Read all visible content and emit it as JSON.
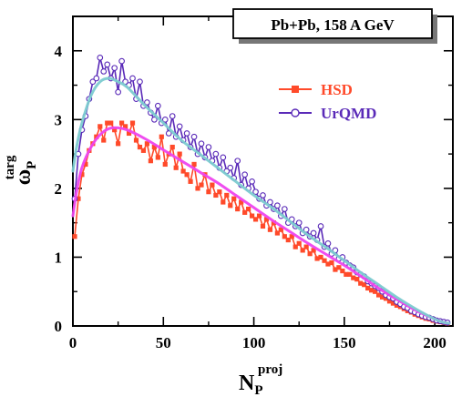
{
  "chart_data": {
    "type": "line",
    "title": "Pb+Pb, 158 A GeV",
    "xlabel": {
      "main": "N",
      "sub": "P",
      "sup": "proj"
    },
    "ylabel": {
      "main": "ω",
      "sub": "P",
      "sup": "targ"
    },
    "xlim": [
      0,
      210
    ],
    "ylim": [
      0,
      4.5
    ],
    "xticks": [
      0,
      50,
      100,
      150,
      200
    ],
    "yticks": [
      0,
      1,
      2,
      3,
      4
    ],
    "grid": false,
    "legend_position": "upper-right",
    "series": [
      {
        "name": "HSD",
        "color": "#ff4a2a",
        "fit_color": "#ee44ee",
        "marker": "square",
        "x": [
          1,
          3,
          5,
          7,
          9,
          11,
          13,
          15,
          17,
          19,
          21,
          23,
          25,
          27,
          29,
          31,
          33,
          35,
          37,
          39,
          41,
          43,
          45,
          47,
          49,
          51,
          53,
          55,
          57,
          59,
          61,
          63,
          65,
          67,
          69,
          71,
          73,
          75,
          77,
          79,
          81,
          83,
          85,
          87,
          89,
          91,
          93,
          95,
          97,
          99,
          101,
          103,
          105,
          107,
          109,
          111,
          113,
          115,
          117,
          119,
          121,
          123,
          125,
          127,
          129,
          131,
          133,
          135,
          137,
          139,
          141,
          143,
          145,
          147,
          149,
          151,
          153,
          155,
          157,
          159,
          161,
          163,
          165,
          167,
          169,
          171,
          173,
          175,
          177,
          179,
          181,
          183,
          185,
          187,
          189,
          191,
          193,
          195,
          197,
          199,
          201,
          203,
          205,
          207
        ],
        "values": [
          1.3,
          1.85,
          2.2,
          2.35,
          2.55,
          2.65,
          2.75,
          2.9,
          2.7,
          2.95,
          2.95,
          2.85,
          2.65,
          2.95,
          2.9,
          2.8,
          2.95,
          2.7,
          2.6,
          2.55,
          2.65,
          2.4,
          2.6,
          2.45,
          2.75,
          2.35,
          2.5,
          2.6,
          2.3,
          2.5,
          2.25,
          2.2,
          2.1,
          2.35,
          2.0,
          2.05,
          2.2,
          1.95,
          2.05,
          1.9,
          1.95,
          1.8,
          1.9,
          1.75,
          1.85,
          1.7,
          1.8,
          1.65,
          1.7,
          1.6,
          1.55,
          1.6,
          1.45,
          1.55,
          1.4,
          1.5,
          1.35,
          1.4,
          1.3,
          1.25,
          1.3,
          1.15,
          1.2,
          1.1,
          1.15,
          1.05,
          1.1,
          0.98,
          1.0,
          0.95,
          0.9,
          0.92,
          0.82,
          0.85,
          0.8,
          0.75,
          0.75,
          0.7,
          0.68,
          0.62,
          0.6,
          0.55,
          0.52,
          0.5,
          0.45,
          0.42,
          0.4,
          0.36,
          0.33,
          0.3,
          0.28,
          0.25,
          0.22,
          0.2,
          0.17,
          0.15,
          0.13,
          0.11,
          0.1,
          0.08,
          0.07,
          0.06,
          0.05,
          0.04
        ],
        "fit": {
          "x": [
            0,
            2,
            5,
            10,
            15,
            20,
            25,
            30,
            40,
            50,
            60,
            70,
            80,
            90,
            100,
            110,
            120,
            130,
            140,
            150,
            160,
            170,
            180,
            190,
            200,
            205,
            208
          ],
          "values": [
            1.6,
            1.95,
            2.3,
            2.6,
            2.78,
            2.87,
            2.88,
            2.85,
            2.72,
            2.56,
            2.4,
            2.24,
            2.08,
            1.9,
            1.72,
            1.54,
            1.37,
            1.2,
            1.04,
            0.88,
            0.71,
            0.53,
            0.37,
            0.22,
            0.1,
            0.05,
            0.04
          ]
        }
      },
      {
        "name": "UrQMD",
        "color": "#5a2ab8",
        "fit_color": "#7ccbd0",
        "marker": "circle",
        "x": [
          1,
          3,
          5,
          7,
          9,
          11,
          13,
          15,
          17,
          19,
          21,
          23,
          25,
          27,
          29,
          31,
          33,
          35,
          37,
          39,
          41,
          43,
          45,
          47,
          49,
          51,
          53,
          55,
          57,
          59,
          61,
          63,
          65,
          67,
          69,
          71,
          73,
          75,
          77,
          79,
          81,
          83,
          85,
          87,
          89,
          91,
          93,
          95,
          97,
          99,
          101,
          103,
          105,
          107,
          109,
          111,
          113,
          115,
          117,
          119,
          121,
          123,
          125,
          127,
          129,
          131,
          133,
          135,
          137,
          139,
          141,
          143,
          145,
          147,
          149,
          151,
          153,
          155,
          157,
          159,
          161,
          163,
          165,
          167,
          169,
          171,
          173,
          175,
          177,
          179,
          181,
          183,
          185,
          187,
          189,
          191,
          193,
          195,
          197,
          199,
          201,
          203,
          205,
          207
        ],
        "values": [
          1.85,
          2.5,
          2.85,
          3.05,
          3.3,
          3.55,
          3.6,
          3.9,
          3.7,
          3.8,
          3.6,
          3.75,
          3.4,
          3.85,
          3.55,
          3.5,
          3.6,
          3.3,
          3.55,
          3.2,
          3.25,
          3.1,
          3.0,
          3.2,
          2.95,
          3.0,
          2.8,
          3.05,
          2.75,
          2.9,
          2.7,
          2.8,
          2.6,
          2.75,
          2.5,
          2.65,
          2.45,
          2.6,
          2.4,
          2.5,
          2.3,
          2.45,
          2.25,
          2.3,
          2.15,
          2.4,
          2.05,
          2.2,
          2.0,
          2.1,
          1.95,
          1.85,
          1.9,
          1.75,
          1.8,
          1.7,
          1.75,
          1.6,
          1.7,
          1.5,
          1.55,
          1.45,
          1.5,
          1.35,
          1.4,
          1.3,
          1.35,
          1.25,
          1.45,
          1.15,
          1.2,
          1.05,
          1.1,
          0.98,
          1.0,
          0.92,
          0.88,
          0.85,
          0.78,
          0.75,
          0.72,
          0.65,
          0.62,
          0.58,
          0.55,
          0.5,
          0.45,
          0.42,
          0.4,
          0.35,
          0.32,
          0.28,
          0.26,
          0.22,
          0.2,
          0.17,
          0.15,
          0.13,
          0.12,
          0.1,
          0.08,
          0.07,
          0.06,
          0.05
        ],
        "fit": {
          "x": [
            0,
            2,
            5,
            10,
            15,
            20,
            25,
            30,
            40,
            50,
            60,
            70,
            80,
            90,
            100,
            110,
            120,
            130,
            140,
            150,
            160,
            170,
            180,
            190,
            200,
            205,
            208
          ],
          "values": [
            2.25,
            2.6,
            2.95,
            3.35,
            3.55,
            3.6,
            3.55,
            3.47,
            3.2,
            2.95,
            2.7,
            2.5,
            2.3,
            2.1,
            1.9,
            1.72,
            1.52,
            1.32,
            1.14,
            0.95,
            0.76,
            0.58,
            0.4,
            0.24,
            0.1,
            0.05,
            0.04
          ]
        }
      }
    ]
  }
}
